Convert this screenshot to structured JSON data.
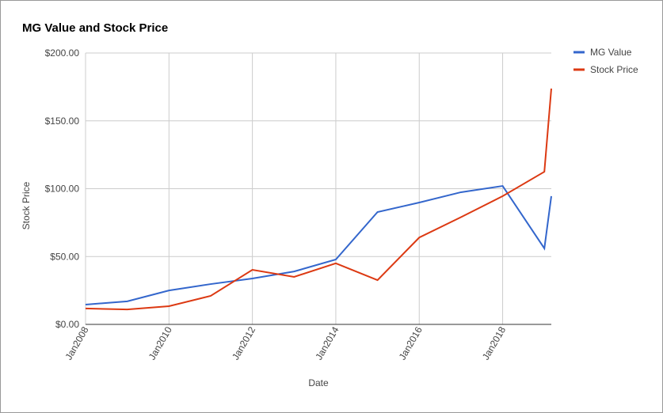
{
  "chart_data": {
    "type": "line",
    "title": "MG Value and Stock Price",
    "x_label": "Date",
    "y_label": "Stock Price",
    "x": [
      "2008-01",
      "2009-01",
      "2010-01",
      "2011-01",
      "2012-01",
      "2013-01",
      "2014-01",
      "2015-01",
      "2016-01",
      "2017-01",
      "2018-01",
      "2019-01",
      "2019-03"
    ],
    "series": [
      {
        "name": "MG Value",
        "color": "#3366cc",
        "values": [
          14.6,
          17,
          25,
          29.7,
          33.8,
          39,
          47.8,
          82.8,
          89.8,
          97.4,
          102,
          56,
          94.5
        ]
      },
      {
        "name": "Stock Price",
        "color": "#dc3912",
        "values": [
          11.7,
          11,
          13.4,
          21,
          40.2,
          35,
          45,
          32.6,
          64,
          79,
          94.5,
          112.5,
          173.8
        ]
      }
    ],
    "xlim": [
      "2008-01",
      "2019-03"
    ],
    "xticks": [
      {
        "value": "2008-01",
        "label": "Jan2008"
      },
      {
        "value": "2010-01",
        "label": "Jan2010"
      },
      {
        "value": "2012-01",
        "label": "Jan2012"
      },
      {
        "value": "2014-01",
        "label": "Jan2014"
      },
      {
        "value": "2016-01",
        "label": "Jan2016"
      },
      {
        "value": "2018-01",
        "label": "Jan2018"
      }
    ],
    "ylim": [
      0,
      200
    ],
    "yticks": [
      {
        "value": 0,
        "label": "$0.00"
      },
      {
        "value": 50,
        "label": "$50.00"
      },
      {
        "value": 100,
        "label": "$100.00"
      },
      {
        "value": 150,
        "label": "$150.00"
      },
      {
        "value": 200,
        "label": "$200.00"
      }
    ],
    "grid": true,
    "legend": "right"
  }
}
